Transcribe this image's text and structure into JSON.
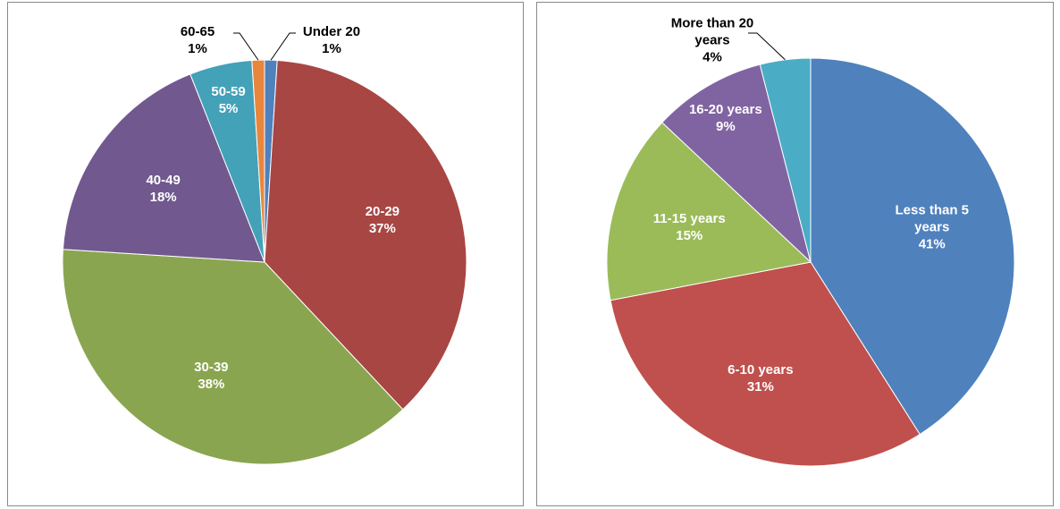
{
  "chart_data": [
    {
      "type": "pie",
      "categories": [
        "Under 20",
        "20-29",
        "30-39",
        "40-49",
        "50-59",
        "60-65"
      ],
      "values": [
        1,
        37,
        38,
        18,
        5,
        1
      ],
      "value_labels": [
        "1%",
        "37%",
        "38%",
        "18%",
        "5%",
        "1%"
      ],
      "colors": [
        "#4f81bd",
        "#a84643",
        "#8aa54f",
        "#71598f",
        "#43a1b8",
        "#e9863c"
      ]
    },
    {
      "type": "pie",
      "categories": [
        "Less than 5 years",
        "6-10 years",
        "11-15 years",
        "16-20 years",
        "More than 20 years"
      ],
      "values": [
        41,
        31,
        15,
        9,
        4
      ],
      "value_labels": [
        "41%",
        "31%",
        "15%",
        "9%",
        "4%"
      ],
      "colors": [
        "#4f81bd",
        "#c0504d",
        "#9bbb59",
        "#8064a2",
        "#4bacc6"
      ]
    }
  ]
}
